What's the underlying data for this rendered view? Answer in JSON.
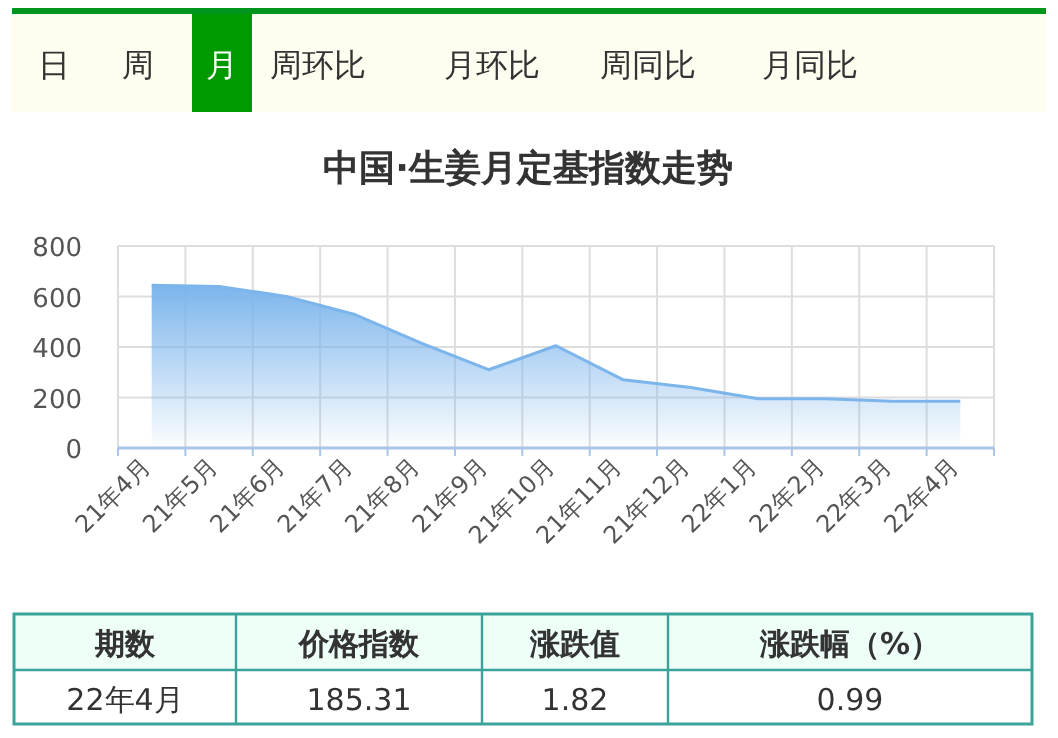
{
  "chart_data": [
    {
      "type": "other",
      "annotations": [
        "日",
        "周",
        "月",
        "周环比",
        "月环比",
        "周同比",
        "月同比"
      ]
    },
    {
      "type": "area",
      "title": "中国·生姜月定基指数走势",
      "categories": [
        "21年4月",
        "21年5月",
        "21年6月",
        "21年7月",
        "21年8月",
        "21年9月",
        "21年10月",
        "21年11月",
        "21年12月",
        "22年1月",
        "22年2月",
        "22年3月",
        "22年4月"
      ],
      "series": [
        {
          "color": "#7cb5ec",
          "values": [
            645,
            640,
            600,
            530,
            415,
            310,
            405,
            270,
            240,
            195,
            195,
            185,
            185
          ]
        }
      ],
      "ylim": [
        0,
        800
      ],
      "yticks": [
        0,
        200,
        400,
        600,
        800
      ],
      "grid": true
    },
    {
      "type": "other",
      "annotations": [
        "期数",
        "价格指数",
        "涨跌值",
        "涨跌幅（%）",
        "22年4月",
        "185.31",
        "1.82",
        "0.99"
      ]
    }
  ]
}
